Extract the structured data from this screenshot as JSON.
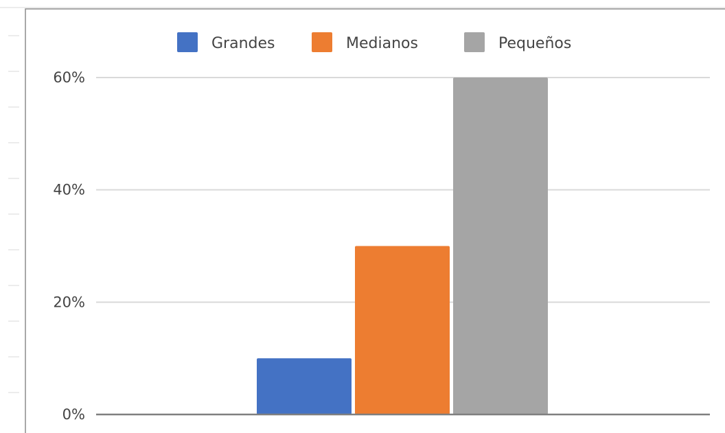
{
  "chart_data": {
    "type": "bar",
    "categories": [
      ""
    ],
    "series": [
      {
        "name": "Grandes",
        "values": [
          10
        ],
        "color": "#4472C4"
      },
      {
        "name": "Medianos",
        "values": [
          30
        ],
        "color": "#ED7D31"
      },
      {
        "name": "Pequeños",
        "values": [
          60
        ],
        "color": "#A5A5A5"
      }
    ],
    "title": "",
    "xlabel": "",
    "ylabel": "",
    "ylim": [
      0,
      60
    ],
    "yticks": [
      {
        "value": 0,
        "label": "0%"
      },
      {
        "value": 20,
        "label": "20%"
      },
      {
        "value": 40,
        "label": "40%"
      },
      {
        "value": 60,
        "label": "60%"
      }
    ],
    "grid": true,
    "legend": "top-center"
  }
}
